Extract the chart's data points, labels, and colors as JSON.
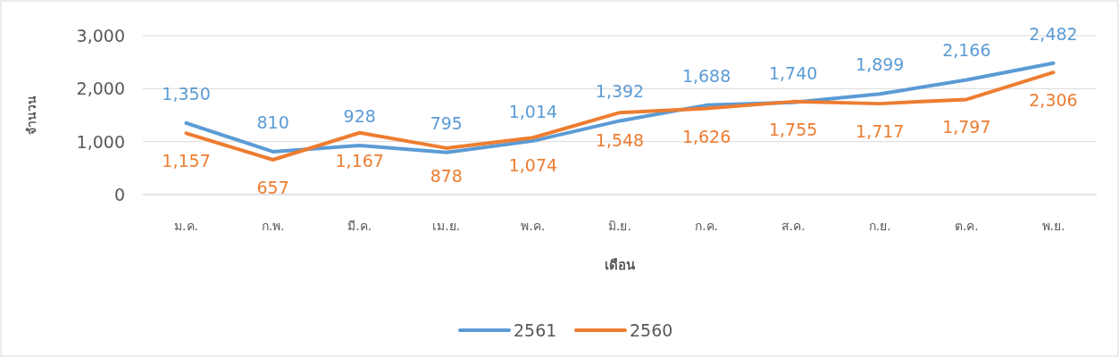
{
  "chart_data": {
    "type": "line",
    "xlabel": "เดือน",
    "ylabel": "จำนวน",
    "categories": [
      "ม.ค.",
      "ก.พ.",
      "มี.ค.",
      "เม.ย.",
      "พ.ค.",
      "มิ.ย.",
      "ก.ค.",
      "ส.ค.",
      "ก.ย.",
      "ต.ค.",
      "พ.ย."
    ],
    "series": [
      {
        "name": "2561",
        "color": "#5b9bd5",
        "values": [
          1350,
          810,
          928,
          795,
          1014,
          1392,
          1688,
          1740,
          1899,
          2166,
          2482
        ],
        "value_labels": [
          "1,350",
          "810",
          "928",
          "795",
          "1,014",
          "1,392",
          "1,688",
          "1,740",
          "1,899",
          "2,166",
          "2,482"
        ]
      },
      {
        "name": "2560",
        "color": "#ed7d31",
        "values": [
          1157,
          657,
          1167,
          878,
          1074,
          1548,
          1626,
          1755,
          1717,
          1797,
          2306
        ],
        "value_labels": [
          "1,157",
          "657",
          "1,167",
          "878",
          "1,074",
          "1,548",
          "1,626",
          "1,755",
          "1,717",
          "1,797",
          "2,306"
        ]
      }
    ],
    "ylim": [
      0,
      3000
    ],
    "yticks": [
      {
        "value": 0,
        "label": "0"
      },
      {
        "value": 1000,
        "label": "1,000"
      },
      {
        "value": 2000,
        "label": "2,000"
      },
      {
        "value": 3000,
        "label": "3,000"
      }
    ],
    "grid": "y",
    "legend": "bottom"
  }
}
